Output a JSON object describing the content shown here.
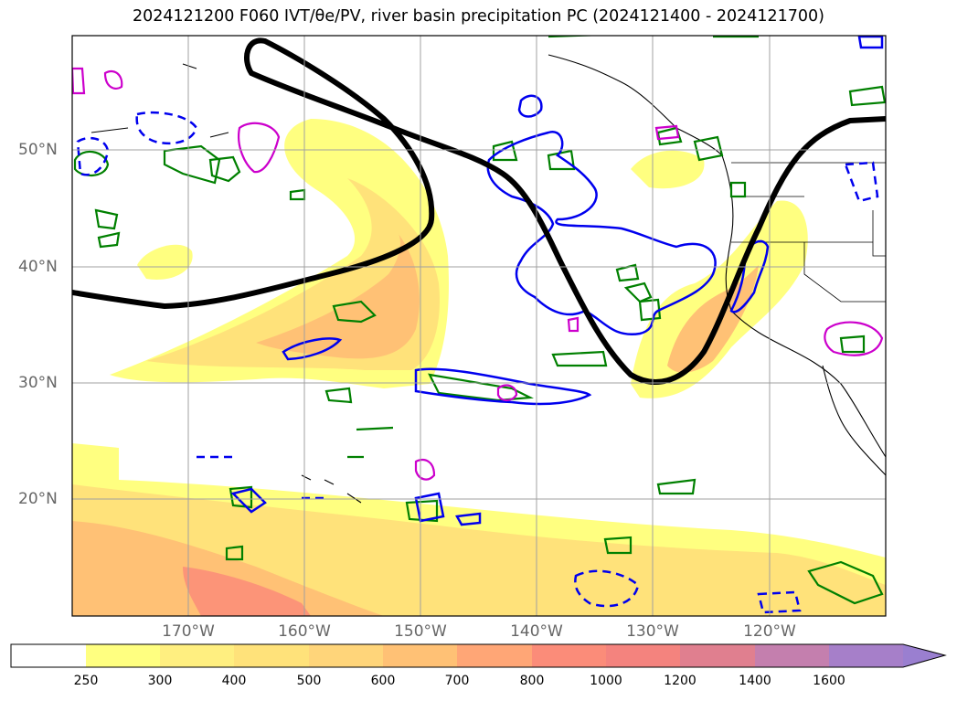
{
  "title": "2024121200 F060 IVT/θe/PV, river basin precipitation PC (2024121400 - 2024121700)",
  "lat_labels": [
    "50°N",
    "40°N",
    "30°N",
    "20°N"
  ],
  "lon_labels": [
    "170°W",
    "160°W",
    "150°W",
    "140°W",
    "130°W",
    "120°W"
  ],
  "colorbar": {
    "ticks": [
      "250",
      "300",
      "400",
      "500",
      "600",
      "700",
      "800",
      "1000",
      "1200",
      "1400",
      "1600"
    ],
    "colors": [
      "#ffffff",
      "#ffff80",
      "#ffef80",
      "#ffe27a",
      "#ffd57a",
      "#ffc175",
      "#ffa676",
      "#fb8c79",
      "#f4837e",
      "#e07f8f",
      "#c47fae",
      "#a67fc9",
      "#9a7fd0"
    ]
  },
  "legend_colors": {
    "ivt_low": "#ffff80",
    "ivt_mid": "#ffd57a",
    "ivt_high": "#ffa676",
    "theta_e_contour": "#000000",
    "pv_positive": "#0000ee",
    "pv_dashed": "#0000ee",
    "green_contour": "#008000",
    "magenta_contour": "#cc00cc"
  }
}
